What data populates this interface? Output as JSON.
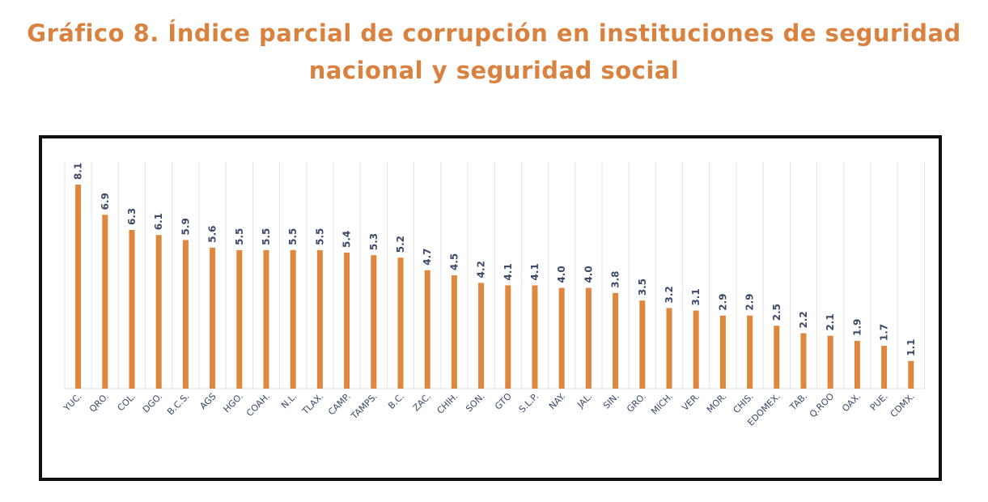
{
  "colors": {
    "title": "#d9823f",
    "bar": "#e0873f",
    "labels": "#3b4a6b",
    "grid": "#e3e3e3",
    "frame": "#111111"
  },
  "chart_data": {
    "type": "bar",
    "title": [
      "Gráfico 8. Índice parcial de corrupción en instituciones de seguridad",
      "nacional y seguridad social"
    ],
    "xlabel": "",
    "ylabel": "",
    "ylim": [
      0,
      9
    ],
    "grid": "vertical",
    "legend": "none",
    "data_labels": true,
    "categories": [
      "YUC.",
      "QRO.",
      "COL.",
      "DGO.",
      "B.C.S.",
      "AGS",
      "HGO.",
      "COAH.",
      "N.L.",
      "TLAX.",
      "CAMP.",
      "TAMPS.",
      "B.C.",
      "ZAC.",
      "CHIH.",
      "SON.",
      "GTO",
      "S.L.P.",
      "NAY.",
      "JAL.",
      "SIN.",
      "GRO.",
      "MICH.",
      "VER.",
      "MOR.",
      "CHIS.",
      "EDOMEX.",
      "TAB.",
      "Q.ROO",
      "OAX.",
      "PUE.",
      "CDMX."
    ],
    "values": [
      8.1,
      6.9,
      6.3,
      6.1,
      5.9,
      5.6,
      5.5,
      5.5,
      5.5,
      5.5,
      5.4,
      5.3,
      5.2,
      4.7,
      4.5,
      4.2,
      4.1,
      4.1,
      4.0,
      4.0,
      3.8,
      3.5,
      3.2,
      3.1,
      2.9,
      2.9,
      2.5,
      2.2,
      2.1,
      1.9,
      1.7,
      1.1
    ]
  }
}
